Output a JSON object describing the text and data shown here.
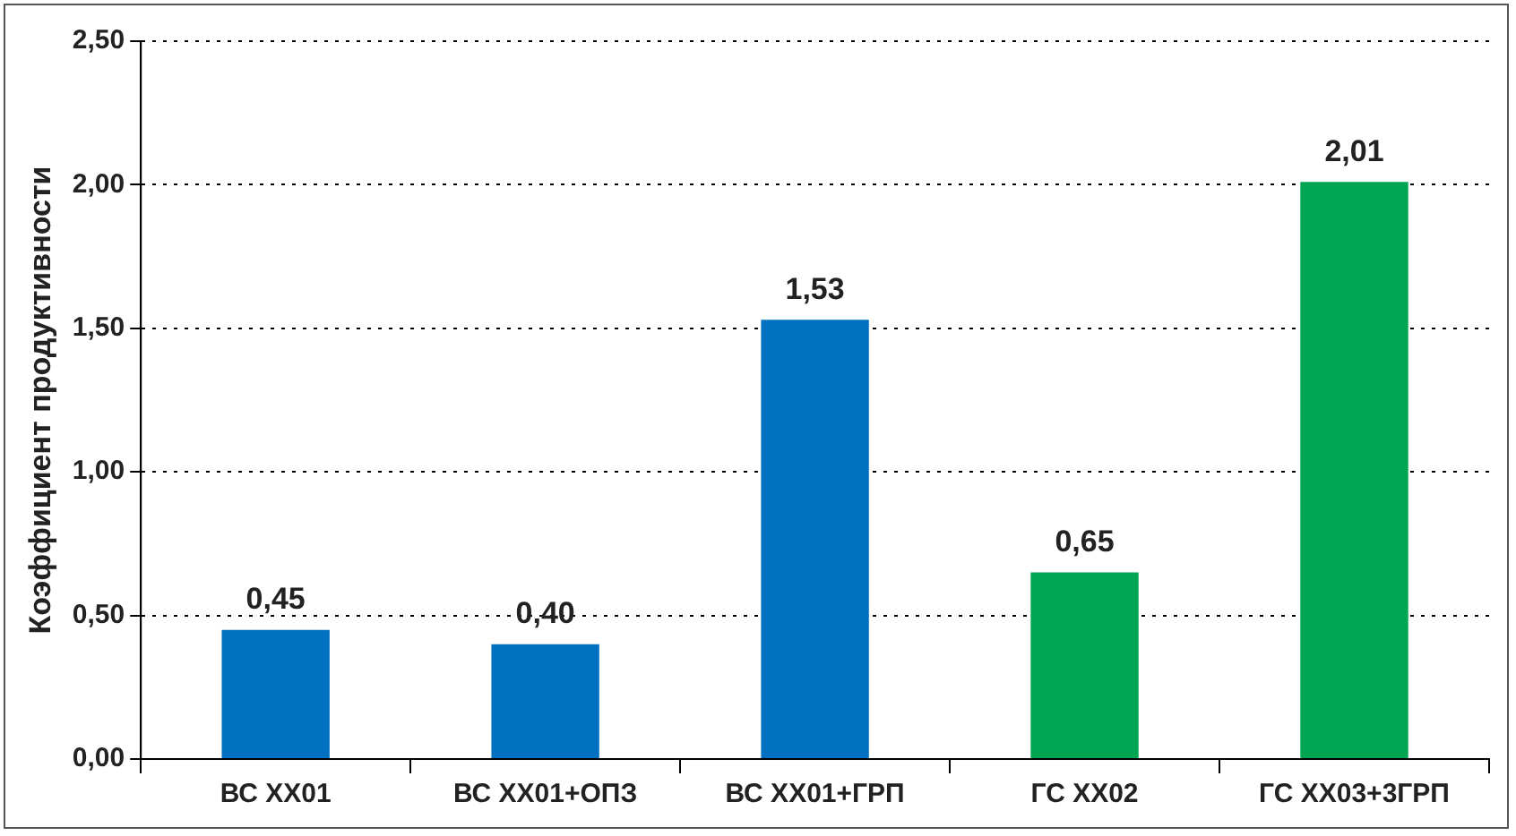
{
  "chart_data": {
    "type": "bar",
    "ylabel": "Коэффициент продуктивности",
    "categories": [
      "ВС ХХ01",
      "ВС ХХ01+ОПЗ",
      "ВС ХХ01+ГРП",
      "ГС ХХ02",
      "ГС ХХ03+3ГРП"
    ],
    "values": [
      0.45,
      0.4,
      1.53,
      0.65,
      2.01
    ],
    "value_labels": [
      "0,45",
      "0,40",
      "1,53",
      "0,65",
      "2,01"
    ],
    "colors": [
      "#0070c0",
      "#0070c0",
      "#0070c0",
      "#00a651",
      "#00a651"
    ],
    "ylim": [
      0,
      2.5
    ],
    "yticks": [
      {
        "value": 0,
        "label": "0,00"
      },
      {
        "value": 0.5,
        "label": "0,50"
      },
      {
        "value": 1,
        "label": "1,00"
      },
      {
        "value": 1.5,
        "label": "1,50"
      },
      {
        "value": 2,
        "label": "2,00"
      },
      {
        "value": 2.5,
        "label": "2,50"
      }
    ],
    "grid": "y",
    "legend": false
  }
}
